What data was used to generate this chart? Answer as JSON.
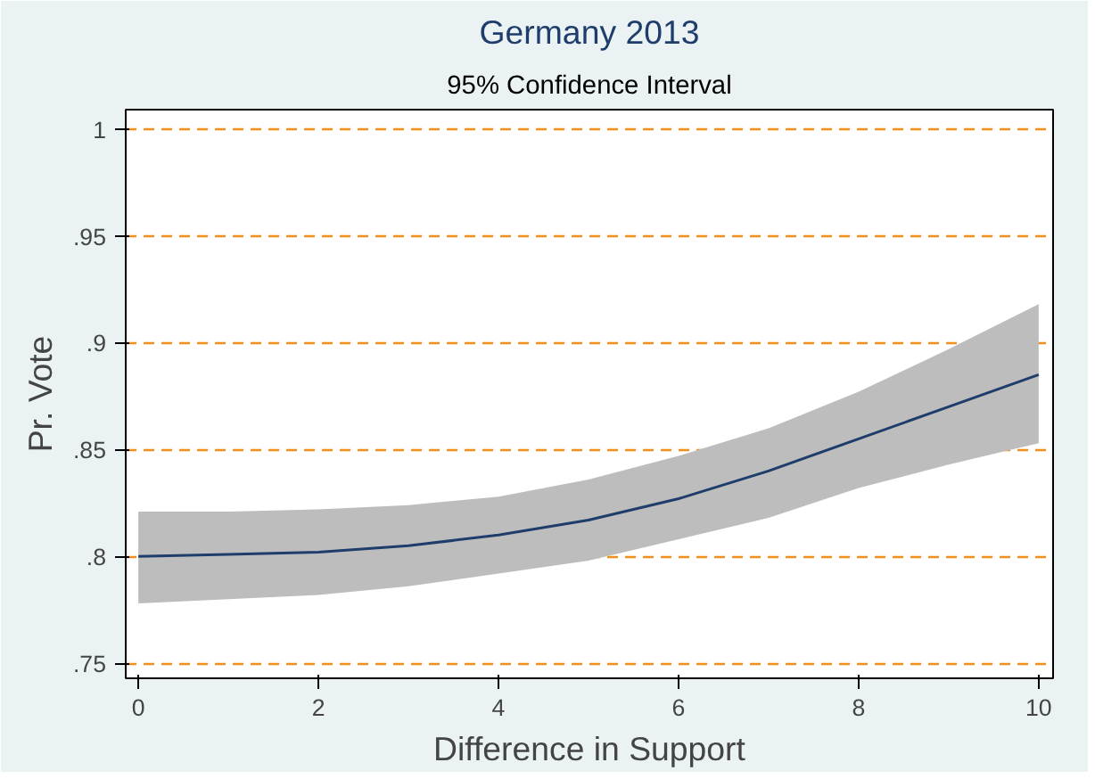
{
  "chart_data": {
    "type": "line",
    "title": "Germany 2013",
    "subtitle": "95% Confidence Interval",
    "xlabel": "Difference in Support",
    "ylabel": "Pr. Vote",
    "x": [
      0,
      1,
      2,
      3,
      4,
      5,
      6,
      7,
      8,
      9,
      10
    ],
    "series": [
      {
        "color": "#1f3d6b",
        "values": [
          0.8,
          0.801,
          0.802,
          0.805,
          0.81,
          0.817,
          0.827,
          0.84,
          0.855,
          0.87,
          0.885
        ],
        "lower": [
          0.778,
          0.78,
          0.782,
          0.786,
          0.792,
          0.798,
          0.808,
          0.818,
          0.832,
          0.843,
          0.853
        ],
        "upper": [
          0.821,
          0.821,
          0.822,
          0.824,
          0.828,
          0.836,
          0.847,
          0.86,
          0.877,
          0.897,
          0.918
        ]
      }
    ],
    "xlim": [
      -0.14,
      10.16
    ],
    "ylim": [
      0.743,
      1.009
    ],
    "xticks": [
      0,
      2,
      4,
      6,
      8,
      10
    ],
    "yticks": [
      {
        "value": 0.75,
        "label": ".75"
      },
      {
        "value": 0.8,
        "label": ".8"
      },
      {
        "value": 0.85,
        "label": ".85"
      },
      {
        "value": 0.9,
        "label": ".9"
      },
      {
        "value": 0.95,
        "label": ".95"
      },
      {
        "value": 1,
        "label": "1"
      }
    ],
    "grid": "y",
    "line_style": "solid",
    "marker": "none"
  }
}
